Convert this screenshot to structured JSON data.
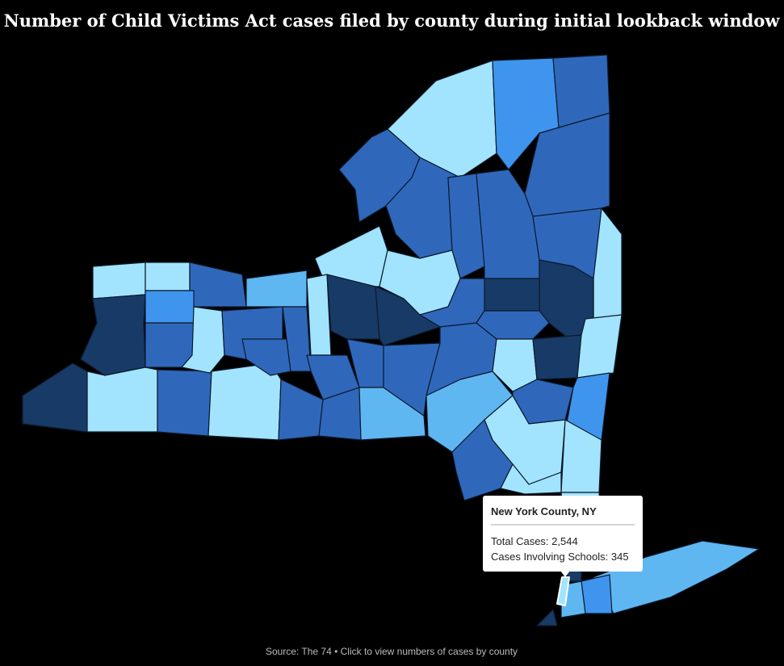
{
  "title": "Number of Child Victims Act cases filed by county during initial lookback window",
  "tooltip": {
    "county": "New York County, NY",
    "lines": [
      "Total Cases: 2,544",
      "Cases Involving Schools: 345"
    ]
  },
  "footer": "Source: The 74 • Click to view numbers of cases by county"
}
